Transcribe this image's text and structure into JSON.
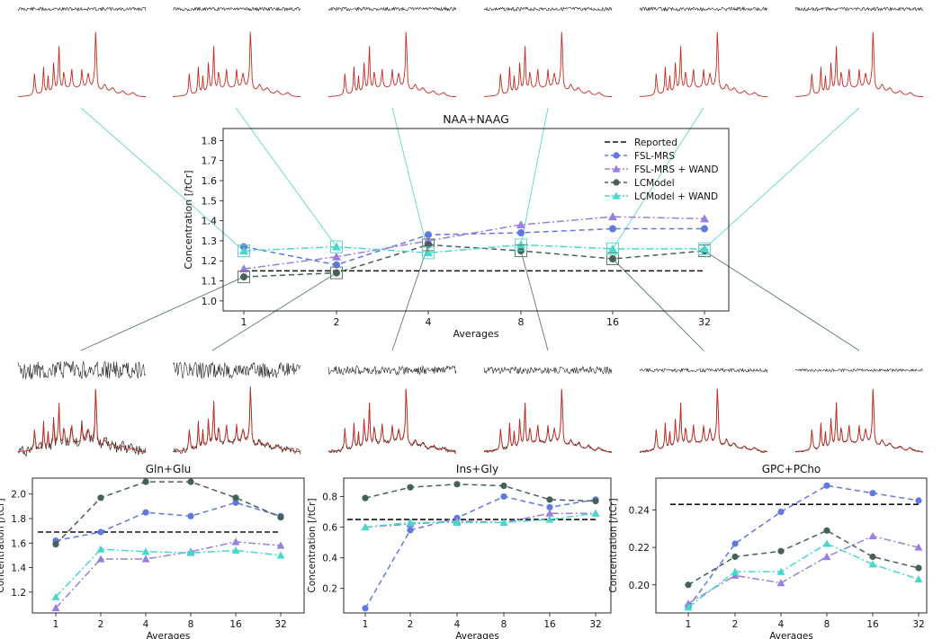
{
  "colors": {
    "fsl": "#6079e0",
    "fsl_wand": "#9a7fe0",
    "lcm": "#46605a",
    "lcm_wand": "#45d9cc",
    "reported": "#111111",
    "spectrum": "#c8281e",
    "noise": "#222222",
    "connector_top": "#5fd8cc",
    "connector_bottom": "#5d7a73"
  },
  "legend": {
    "reported": "Reported",
    "fsl": "FSL-MRS",
    "fsl_wand": "FSL-MRS + WAND",
    "lcm": "LCModel",
    "lcm_wand": "LCModel + WAND"
  },
  "chart_data": [
    {
      "type": "line",
      "title": "NAA+NAAG",
      "xlabel": "Averages",
      "ylabel": "Concentration [/tCr]",
      "categories": [
        "1",
        "2",
        "4",
        "8",
        "16",
        "32"
      ],
      "ylim": [
        0.95,
        1.86
      ],
      "yticks": [
        1.0,
        1.1,
        1.2,
        1.3,
        1.4,
        1.5,
        1.6,
        1.7,
        1.8
      ],
      "reported": 1.15,
      "legend_position": "top-right",
      "grid": false,
      "series": [
        {
          "name": "FSL-MRS",
          "values": [
            1.27,
            1.18,
            1.33,
            1.34,
            1.36,
            1.36
          ]
        },
        {
          "name": "FSL-MRS + WAND",
          "values": [
            1.16,
            1.22,
            1.3,
            1.38,
            1.42,
            1.41
          ]
        },
        {
          "name": "LCModel",
          "values": [
            1.12,
            1.14,
            1.28,
            1.25,
            1.21,
            1.25
          ]
        },
        {
          "name": "LCModel + WAND",
          "values": [
            1.25,
            1.27,
            1.24,
            1.28,
            1.26,
            1.26
          ]
        }
      ]
    },
    {
      "type": "line",
      "title": "Gln+Glu",
      "xlabel": "Averages",
      "ylabel": "Concentration [/tCr]",
      "categories": [
        "1",
        "2",
        "4",
        "8",
        "16",
        "32"
      ],
      "ylim": [
        1.03,
        2.13
      ],
      "yticks": [
        1.2,
        1.4,
        1.6,
        1.8,
        2.0
      ],
      "reported": 1.69,
      "grid": false,
      "series": [
        {
          "name": "FSL-MRS",
          "values": [
            1.62,
            1.69,
            1.85,
            1.82,
            1.93,
            1.82
          ]
        },
        {
          "name": "FSL-MRS + WAND",
          "values": [
            1.07,
            1.47,
            1.47,
            1.53,
            1.61,
            1.58
          ]
        },
        {
          "name": "LCModel",
          "values": [
            1.59,
            1.97,
            2.1,
            2.1,
            1.97,
            1.81
          ]
        },
        {
          "name": "LCModel + WAND",
          "values": [
            1.16,
            1.55,
            1.53,
            1.52,
            1.54,
            1.5
          ]
        }
      ]
    },
    {
      "type": "line",
      "title": "Ins+Gly",
      "xlabel": "Averages",
      "ylabel": "Concentration [/tCr]",
      "categories": [
        "1",
        "2",
        "4",
        "8",
        "16",
        "32"
      ],
      "ylim": [
        0.04,
        0.92
      ],
      "yticks": [
        0.2,
        0.4,
        0.6,
        0.8
      ],
      "reported": 0.65,
      "grid": false,
      "series": [
        {
          "name": "FSL-MRS",
          "values": [
            0.07,
            0.58,
            0.66,
            0.8,
            0.73,
            0.78
          ]
        },
        {
          "name": "FSL-MRS + WAND",
          "values": [
            0.6,
            0.62,
            0.64,
            0.63,
            0.69,
            0.69
          ]
        },
        {
          "name": "LCModel",
          "values": [
            0.79,
            0.86,
            0.88,
            0.87,
            0.78,
            0.77
          ]
        },
        {
          "name": "LCModel + WAND",
          "values": [
            0.6,
            0.63,
            0.63,
            0.63,
            0.65,
            0.69
          ]
        }
      ]
    },
    {
      "type": "line",
      "title": "GPC+PCho",
      "xlabel": "Averages",
      "ylabel": "Concentration [/tCr]",
      "categories": [
        "1",
        "2",
        "4",
        "8",
        "16",
        "32"
      ],
      "ylim": [
        0.185,
        0.257
      ],
      "yticks": [
        0.2,
        0.22,
        0.24
      ],
      "ytick_labels": [
        "0.20",
        "0.22",
        "0.24"
      ],
      "reported": 0.243,
      "grid": false,
      "series": [
        {
          "name": "FSL-MRS",
          "values": [
            0.188,
            0.222,
            0.239,
            0.253,
            0.249,
            0.245
          ]
        },
        {
          "name": "FSL-MRS + WAND",
          "values": [
            0.19,
            0.205,
            0.201,
            0.215,
            0.226,
            0.22
          ]
        },
        {
          "name": "LCModel",
          "values": [
            0.2,
            0.215,
            0.218,
            0.229,
            0.215,
            0.209
          ]
        },
        {
          "name": "LCModel + WAND",
          "values": [
            0.188,
            0.207,
            0.207,
            0.222,
            0.211,
            0.203
          ]
        }
      ]
    }
  ]
}
